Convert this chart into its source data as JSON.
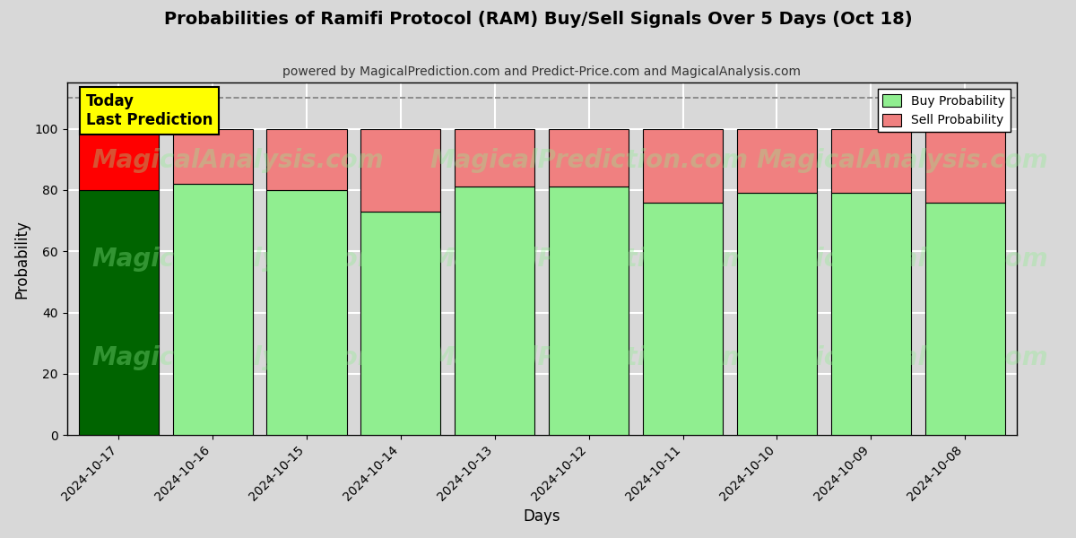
{
  "title": "Probabilities of Ramifi Protocol (RAM) Buy/Sell Signals Over 5 Days (Oct 18)",
  "subtitle": "powered by MagicalPrediction.com and Predict-Price.com and MagicalAnalysis.com",
  "xlabel": "Days",
  "ylabel": "Probability",
  "dates": [
    "2024-10-17",
    "2024-10-16",
    "2024-10-15",
    "2024-10-14",
    "2024-10-13",
    "2024-10-12",
    "2024-10-11",
    "2024-10-10",
    "2024-10-09",
    "2024-10-08"
  ],
  "buy_values": [
    80,
    82,
    80,
    73,
    81,
    81,
    76,
    79,
    79,
    76
  ],
  "sell_values": [
    20,
    18,
    20,
    27,
    19,
    19,
    24,
    21,
    21,
    24
  ],
  "today_buy_color": "#006400",
  "today_sell_color": "#FF0000",
  "buy_color": "#90EE90",
  "sell_color": "#F08080",
  "today_annotation_text": "Today\nLast Prediction",
  "today_annotation_bg": "#FFFF00",
  "legend_buy_label": "Buy Probability",
  "legend_sell_label": "Sell Probability",
  "ylim": [
    0,
    115
  ],
  "dashed_line_y": 110,
  "bar_edgecolor": "#000000",
  "bar_edgewidth": 0.8,
  "watermark_text1": "MagicalAnalysis.com",
  "watermark_text2": "MagicalPrediction.com",
  "grid_color": "#FFFFFF",
  "bg_color": "#D8D8D8",
  "plot_bg_color": "#D8D8D8",
  "figsize": [
    12,
    6
  ],
  "dpi": 100
}
